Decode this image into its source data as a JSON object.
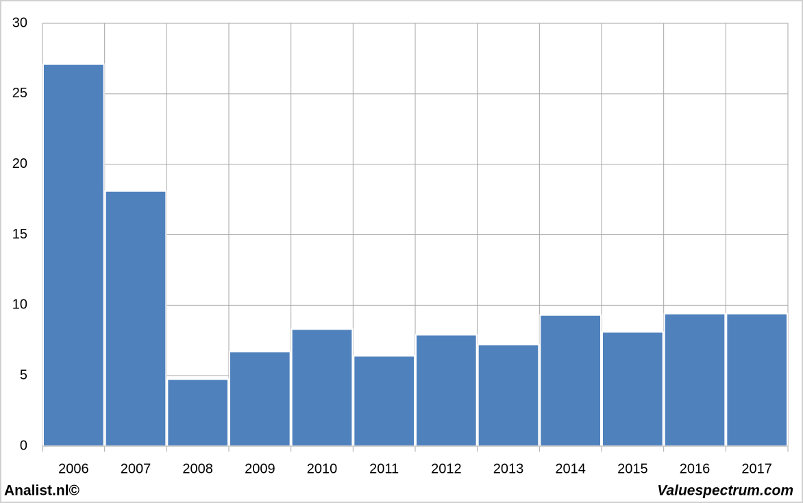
{
  "chart_data": {
    "type": "bar",
    "categories": [
      "2006",
      "2007",
      "2008",
      "2009",
      "2010",
      "2011",
      "2012",
      "2013",
      "2014",
      "2015",
      "2016",
      "2017"
    ],
    "values": [
      27.1,
      18.1,
      4.75,
      6.7,
      8.3,
      6.4,
      7.9,
      7.2,
      9.3,
      8.1,
      9.4,
      9.4
    ],
    "color": "#4f81bd",
    "ylim": [
      0,
      30
    ],
    "yticks": [
      0,
      5,
      10,
      15,
      20,
      25,
      30
    ],
    "grid": true,
    "credit_left": "Analist.nl©",
    "credit_right": "Valuespectrum.com"
  }
}
